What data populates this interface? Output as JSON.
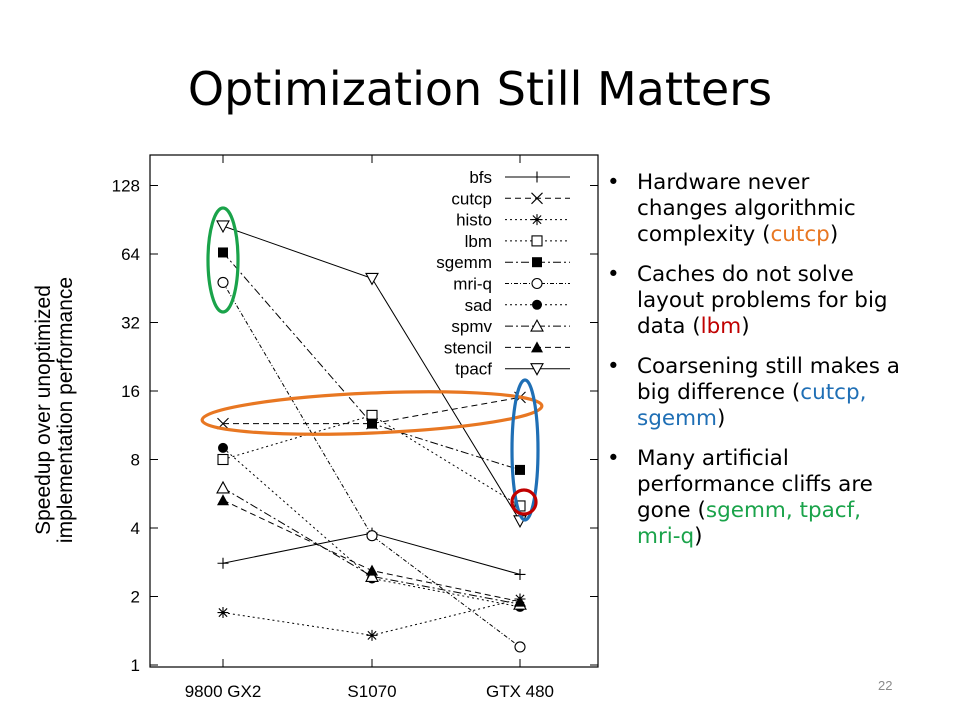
{
  "slide": {
    "title": "Optimization Still Matters",
    "page_number": "22"
  },
  "bullets": [
    [
      {
        "text": "Hardware never changes algorithmic complexity ("
      },
      {
        "text": "cutcp",
        "color": "#e87722"
      },
      {
        "text": ")"
      }
    ],
    [
      {
        "text": "Caches do not solve layout problems for big data ("
      },
      {
        "text": "lbm",
        "color": "#c00000"
      },
      {
        "text": ")"
      }
    ],
    [
      {
        "text": "Coarsening still makes a big difference ("
      },
      {
        "text": "cutcp, sgemm",
        "color": "#1f6fb5"
      },
      {
        "text": ")"
      }
    ],
    [
      {
        "text": "Many artificial performance cliffs are gone ("
      },
      {
        "text": "sgemm, tpacf, mri-q",
        "color": "#1aa34a"
      },
      {
        "text": ")"
      }
    ]
  ],
  "chart_data": {
    "type": "line",
    "yscale": "log2",
    "categories": [
      "9800 GX2",
      "S1070",
      "GTX 480"
    ],
    "ylabel": [
      "Speedup over unoptimized",
      "implementation performance"
    ],
    "yticks": [
      1,
      2,
      4,
      8,
      16,
      32,
      64,
      128
    ],
    "ylim": [
      1,
      200
    ],
    "legend_position": "top-right",
    "series": [
      {
        "name": "bfs",
        "values": [
          2.8,
          3.8,
          2.5
        ],
        "marker": "plus",
        "dash": "solid"
      },
      {
        "name": "cutcp",
        "values": [
          11.5,
          11.5,
          15
        ],
        "marker": "x",
        "dash": "dashed"
      },
      {
        "name": "histo",
        "values": [
          1.7,
          1.35,
          1.95
        ],
        "marker": "asterisk",
        "dash": "dotted"
      },
      {
        "name": "lbm",
        "values": [
          8,
          12.5,
          5
        ],
        "marker": "square-open",
        "dash": "dotted"
      },
      {
        "name": "sgemm",
        "values": [
          65,
          11.5,
          7.2
        ],
        "marker": "square-filled",
        "dash": "dashdot"
      },
      {
        "name": "mri-q",
        "values": [
          48,
          3.7,
          1.2
        ],
        "marker": "circle-open",
        "dash": "dashdot-fine"
      },
      {
        "name": "sad",
        "values": [
          9,
          2.4,
          1.8
        ],
        "marker": "circle-filled",
        "dash": "dotted"
      },
      {
        "name": "spmv",
        "values": [
          6,
          2.45,
          1.85
        ],
        "marker": "triangle-open",
        "dash": "dashdot"
      },
      {
        "name": "stencil",
        "values": [
          5.3,
          2.6,
          1.9
        ],
        "marker": "triangle-filled",
        "dash": "dashed"
      },
      {
        "name": "tpacf",
        "values": [
          85,
          50,
          4.3
        ],
        "marker": "triangle-down-open",
        "dash": "solid"
      }
    ],
    "annotations": {
      "green_ellipse_color": "#1aa34a",
      "orange_ellipse_color": "#e87722",
      "blue_ellipse_color": "#1f6fb5",
      "red_circle_color": "#c00000"
    }
  }
}
